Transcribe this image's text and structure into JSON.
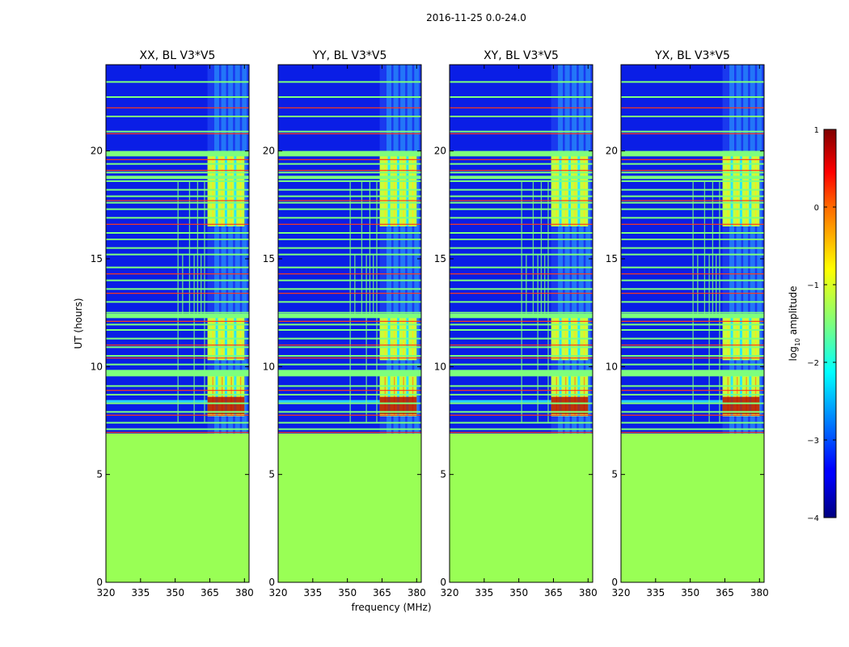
{
  "figure_title": "2016-11-25 0.0-24.0",
  "chart_data": {
    "type": "heatmap",
    "suptitle": "2016-11-25 0.0-24.0",
    "xlabel": "frequency (MHz)",
    "ylabel": "UT (hours)",
    "x_ticks": [
      "320",
      "335",
      "350",
      "365",
      "380"
    ],
    "y_ticks": [
      "0",
      "5",
      "10",
      "15",
      "20"
    ],
    "xlim": [
      320,
      382
    ],
    "ylim": [
      0,
      24
    ],
    "panels": [
      {
        "title": "XX, BL V3*V5"
      },
      {
        "title": "YY, BL V3*V5"
      },
      {
        "title": "XY, BL V3*V5"
      },
      {
        "title": "YX, BL V3*V5"
      }
    ],
    "colorbar": {
      "label_prefix": "log",
      "label_sub": "10",
      "label_suffix": " amplitude",
      "ticks": [
        "1",
        "0",
        "−1",
        "−2",
        "−3",
        "−4"
      ],
      "range": [
        -4,
        1
      ],
      "colormap": "jet"
    },
    "data_start_ut": 6.9,
    "fill_value_before_start": -1.0,
    "rfi_band_mhz": [
      364,
      380
    ],
    "rfi_block_ut": [
      [
        7.7,
        9.6
      ],
      [
        10.3,
        12.3
      ],
      [
        16.5,
        20.0
      ]
    ],
    "colors": {
      "background": "#0a1ee6",
      "fill": "#99ff55",
      "red_line": "#ff3b1a",
      "green_line": "#7dff7d"
    }
  }
}
